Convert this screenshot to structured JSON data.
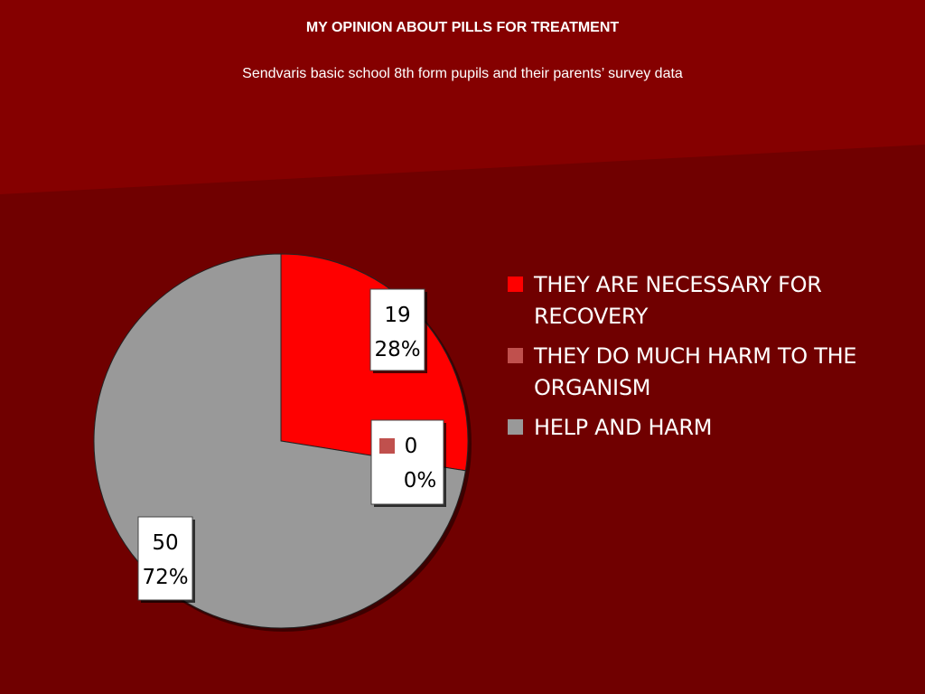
{
  "header": {
    "title": "MY OPINION ABOUT PILLS FOR TREATMENT",
    "subtitle": "Sendvaris basic school 8th form pupils and their parents’ survey data"
  },
  "colors": {
    "background_top": "#8a0000",
    "background_bottom": "#700000",
    "slice_1": "#ff0000",
    "slice_2": "#c0504d",
    "slice_3": "#999999"
  },
  "chart_data": {
    "type": "pie",
    "title": "",
    "categories": [
      "THEY ARE NECESSARY FOR RECOVERY",
      "THEY DO MUCH HARM TO THE ORGANISM",
      "HELP AND HARM"
    ],
    "values": [
      19,
      0,
      50
    ],
    "percent_labels": [
      "28%",
      "0%",
      "72%"
    ],
    "value_labels": [
      "19",
      "0",
      "50"
    ],
    "legend": "right"
  }
}
